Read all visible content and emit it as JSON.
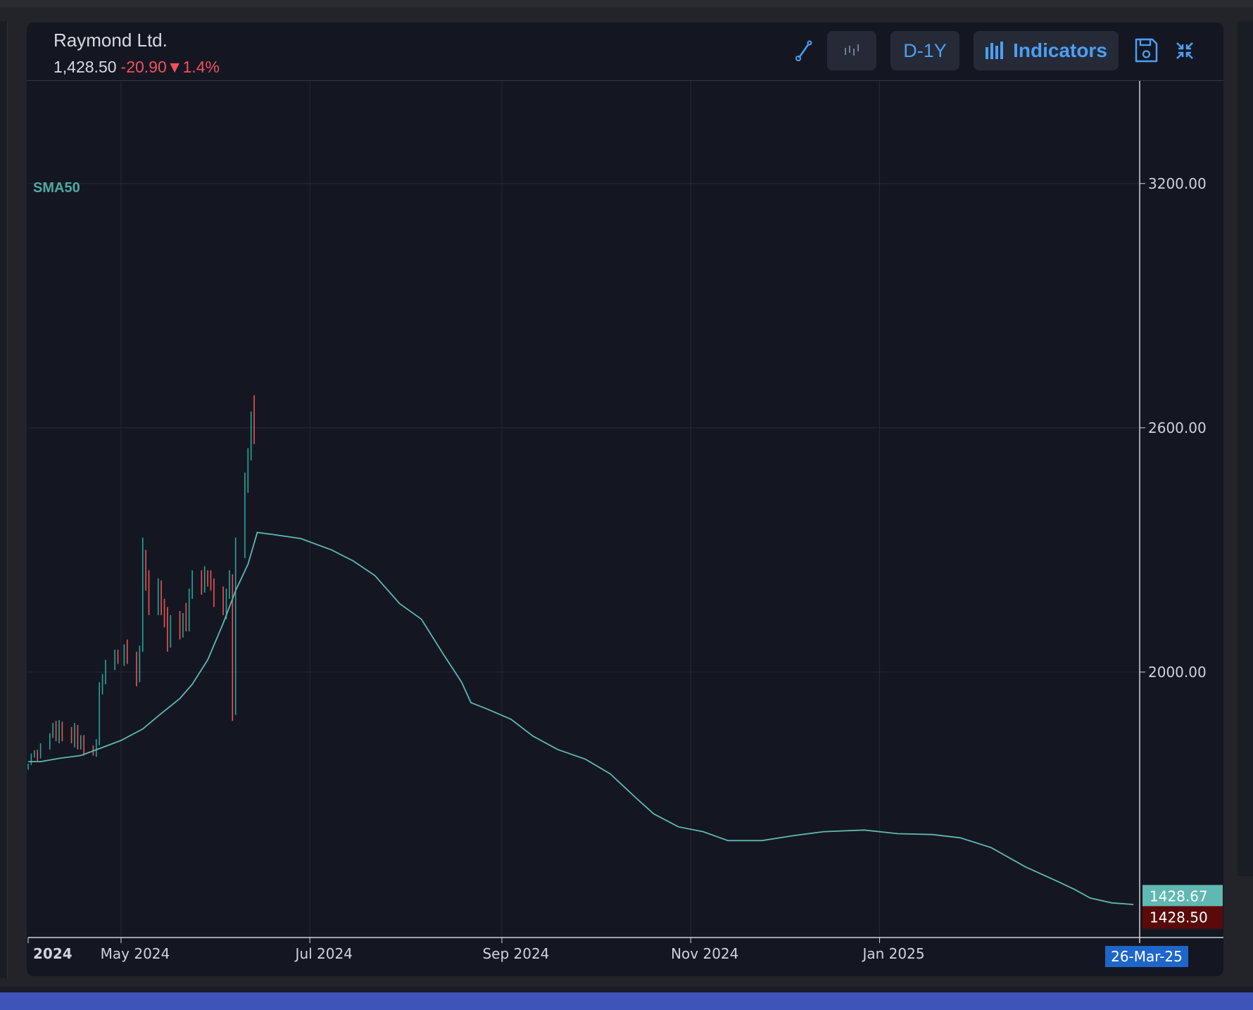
{
  "header": {
    "title": "Raymond Ltd.",
    "price": "1,428.50",
    "change": "-20.90▼1.4%"
  },
  "toolbar": {
    "draw_icon": "draw-line-icon",
    "chart_type_icon": "candlestick-icon",
    "range_label": "D-1Y",
    "indicators_icon": "bar-chart-icon",
    "indicators_label": "Indicators",
    "save_icon": "save-icon",
    "minimize_icon": "minimize-icon"
  },
  "indicator_label": "SMA50",
  "colors": {
    "up": "#26a69a",
    "down": "#ef5350",
    "sma": "#5fb8b1",
    "accent": "#4b9ff5",
    "crosshair_date_bg": "#1e66c9"
  },
  "chart_data": {
    "type": "ohlc",
    "title": "Raymond Ltd.",
    "ylim": [
      1348,
      3452
    ],
    "y_ticks": [
      "3200.00",
      "2600.00",
      "2000.00"
    ],
    "y_tick_values": [
      3200,
      2600,
      2000
    ],
    "x_tick_labels": [
      {
        "label": "2024",
        "date": "2024-04-01",
        "bold": true
      },
      {
        "label": "May 2024",
        "date": "2024-05-01"
      },
      {
        "label": "Jul 2024",
        "date": "2024-07-01"
      },
      {
        "label": "Sep 2024",
        "date": "2024-09-01"
      },
      {
        "label": "Nov 2024",
        "date": "2024-11-01"
      },
      {
        "label": "Jan 2025",
        "date": "2025-01-01"
      }
    ],
    "xlim": [
      "2024-04-01",
      "2025-03-26"
    ],
    "grid": true,
    "crosshair": {
      "date_label": "26-Mar-25",
      "date": "2025-03-26"
    },
    "price_labels": [
      {
        "label": "1428.67",
        "value": 1428.67,
        "name": "SMA50"
      },
      {
        "label": "1428.50",
        "value": 1428.5,
        "name": "last"
      }
    ],
    "sma50": {
      "name": "SMA50",
      "points": [
        [
          "2024-04-01",
          1780
        ],
        [
          "2024-04-05",
          1780
        ],
        [
          "2024-04-11",
          1788
        ],
        [
          "2024-04-18",
          1795
        ],
        [
          "2024-04-24",
          1812
        ],
        [
          "2024-05-01",
          1832
        ],
        [
          "2024-05-08",
          1860
        ],
        [
          "2024-05-13",
          1892
        ],
        [
          "2024-05-20",
          1935
        ],
        [
          "2024-05-24",
          1970
        ],
        [
          "2024-05-29",
          2030
        ],
        [
          "2024-06-03",
          2120
        ],
        [
          "2024-06-07",
          2200
        ],
        [
          "2024-06-11",
          2265
        ],
        [
          "2024-06-14",
          2343
        ],
        [
          "2024-06-19",
          2338
        ],
        [
          "2024-06-28",
          2328
        ],
        [
          "2024-07-08",
          2300
        ],
        [
          "2024-07-15",
          2273
        ],
        [
          "2024-07-22",
          2237
        ],
        [
          "2024-07-30",
          2168
        ],
        [
          "2024-08-06",
          2130
        ],
        [
          "2024-08-13",
          2045
        ],
        [
          "2024-08-19",
          1975
        ],
        [
          "2024-08-22",
          1925
        ],
        [
          "2024-08-27",
          1910
        ],
        [
          "2024-09-04",
          1884
        ],
        [
          "2024-09-11",
          1843
        ],
        [
          "2024-09-19",
          1810
        ],
        [
          "2024-09-28",
          1786
        ],
        [
          "2024-10-06",
          1750
        ],
        [
          "2024-10-14",
          1693
        ],
        [
          "2024-10-20",
          1652
        ],
        [
          "2024-10-28",
          1620
        ],
        [
          "2024-11-05",
          1608
        ],
        [
          "2024-11-13",
          1586
        ],
        [
          "2024-11-24",
          1586
        ],
        [
          "2024-12-04",
          1598
        ],
        [
          "2024-12-14",
          1608
        ],
        [
          "2024-12-27",
          1612
        ],
        [
          "2025-01-07",
          1603
        ],
        [
          "2025-01-18",
          1601
        ],
        [
          "2025-01-27",
          1593
        ],
        [
          "2025-02-06",
          1569
        ],
        [
          "2025-02-17",
          1522
        ],
        [
          "2025-02-28",
          1484
        ],
        [
          "2025-03-05",
          1466
        ],
        [
          "2025-03-10",
          1445
        ],
        [
          "2025-03-17",
          1433
        ],
        [
          "2025-03-24",
          1429
        ]
      ]
    },
    "ohlc": [
      [
        "2024-04-01",
        1760,
        1775,
        1760,
        1775
      ],
      [
        "2024-04-02",
        1775,
        1800,
        1772,
        1796
      ],
      [
        "2024-04-03",
        1796,
        1808,
        1790,
        1804
      ],
      [
        "2024-04-04",
        1804,
        1809,
        1782,
        1790
      ],
      [
        "2024-04-05",
        1790,
        1825,
        1788,
        1820
      ],
      [
        "2024-04-08",
        1820,
        1850,
        1810,
        1845
      ],
      [
        "2024-04-09",
        1845,
        1875,
        1838,
        1868
      ],
      [
        "2024-04-10",
        1868,
        1880,
        1830,
        1840
      ],
      [
        "2024-04-11",
        1840,
        1882,
        1825,
        1870
      ],
      [
        "2024-04-12",
        1870,
        1878,
        1830,
        1838
      ],
      [
        "2024-04-15",
        1838,
        1865,
        1825,
        1832
      ],
      [
        "2024-04-16",
        1832,
        1875,
        1815,
        1862
      ],
      [
        "2024-04-17",
        1862,
        1870,
        1810,
        1820
      ],
      [
        "2024-04-18",
        1820,
        1845,
        1810,
        1835
      ],
      [
        "2024-04-19",
        1835,
        1845,
        1795,
        1815
      ],
      [
        "2024-04-22",
        1815,
        1820,
        1795,
        1800
      ],
      [
        "2024-04-23",
        1800,
        1835,
        1792,
        1830
      ],
      [
        "2024-04-24",
        1830,
        1975,
        1820,
        1960
      ],
      [
        "2024-04-25",
        1960,
        1995,
        1945,
        1985
      ],
      [
        "2024-04-26",
        1985,
        2030,
        1970,
        2020
      ],
      [
        "2024-04-29",
        2020,
        2055,
        2005,
        2045
      ],
      [
        "2024-04-30",
        2045,
        2055,
        2020,
        2030
      ],
      [
        "2024-05-02",
        2030,
        2068,
        2015,
        2060
      ],
      [
        "2024-05-03",
        2060,
        2080,
        2020,
        2040
      ],
      [
        "2024-05-06",
        2040,
        2050,
        1965,
        1980
      ],
      [
        "2024-05-07",
        1980,
        2065,
        1975,
        2060
      ],
      [
        "2024-05-08",
        2060,
        2330,
        2050,
        2290
      ],
      [
        "2024-05-09",
        2290,
        2300,
        2200,
        2220
      ],
      [
        "2024-05-10",
        2220,
        2250,
        2140,
        2150
      ],
      [
        "2024-05-13",
        2150,
        2230,
        2140,
        2215
      ],
      [
        "2024-05-14",
        2215,
        2225,
        2140,
        2150
      ],
      [
        "2024-05-15",
        2150,
        2180,
        2110,
        2130
      ],
      [
        "2024-05-16",
        2130,
        2160,
        2050,
        2070
      ],
      [
        "2024-05-17",
        2070,
        2140,
        2060,
        2130
      ],
      [
        "2024-05-20",
        2130,
        2150,
        2080,
        2095
      ],
      [
        "2024-05-21",
        2095,
        2145,
        2085,
        2135
      ],
      [
        "2024-05-22",
        2135,
        2170,
        2100,
        2110
      ],
      [
        "2024-05-23",
        2110,
        2205,
        2100,
        2190
      ],
      [
        "2024-05-24",
        2190,
        2250,
        2180,
        2235
      ],
      [
        "2024-05-27",
        2235,
        2250,
        2190,
        2200
      ],
      [
        "2024-05-28",
        2200,
        2260,
        2195,
        2245
      ],
      [
        "2024-05-29",
        2245,
        2250,
        2210,
        2230
      ],
      [
        "2024-05-30",
        2230,
        2250,
        2200,
        2210
      ],
      [
        "2024-05-31",
        2210,
        2230,
        2160,
        2180
      ],
      [
        "2024-06-03",
        2180,
        2210,
        2140,
        2155
      ],
      [
        "2024-06-04",
        2155,
        2205,
        2130,
        2190
      ],
      [
        "2024-06-05",
        2190,
        2250,
        2180,
        2235
      ],
      [
        "2024-06-06",
        2235,
        2240,
        1880,
        1900
      ],
      [
        "2024-06-07",
        1900,
        2330,
        1895,
        2300
      ],
      [
        "2024-06-10",
        2300,
        2490,
        2280,
        2460
      ],
      [
        "2024-06-11",
        2460,
        2550,
        2440,
        2540
      ],
      [
        "2024-06-12",
        2540,
        2640,
        2520,
        2620
      ],
      [
        "2024-06-13",
        2620,
        2680,
        2560,
        2580
      ]
    ],
    "ohlc_note": "schematic reading of the bars, up/down by color"
  }
}
